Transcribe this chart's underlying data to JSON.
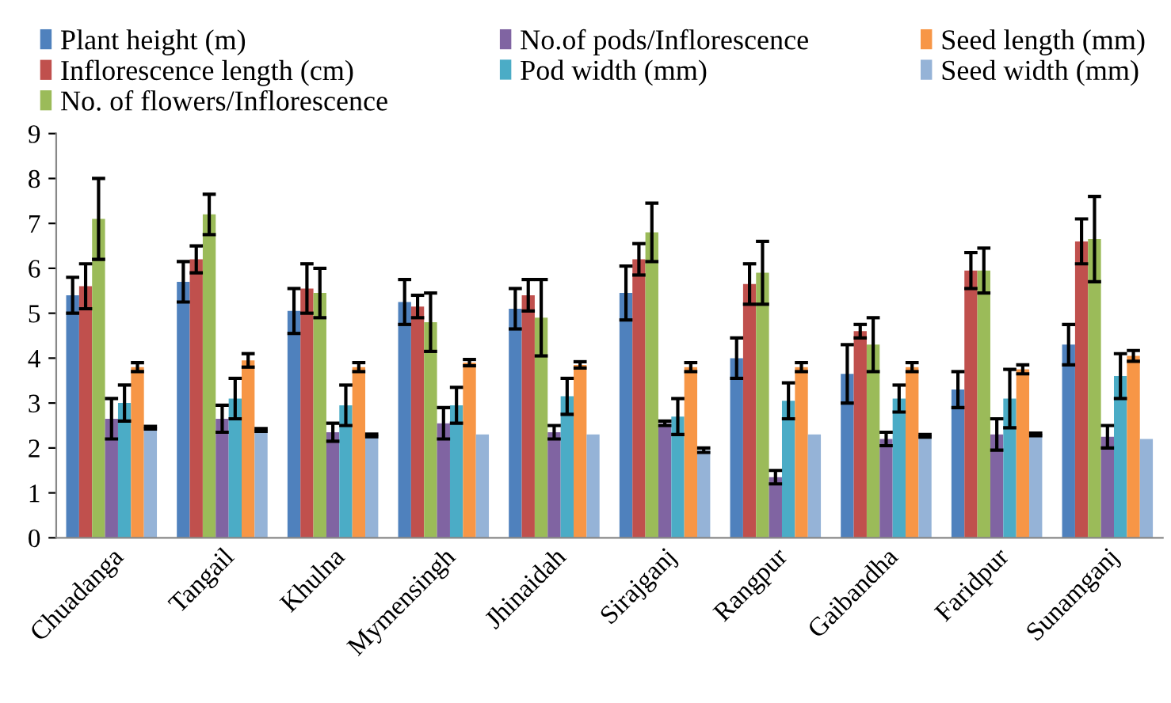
{
  "chart_data": {
    "type": "bar",
    "categories": [
      "Chuadanga",
      "Tangail",
      "Khulna",
      "Mymensingh",
      "Jhinaidah",
      "Sirajganj",
      "Rangpur",
      "Gaibandha",
      "Faridpur",
      "Sunamganj"
    ],
    "series": [
      {
        "name": "Plant height (m)",
        "color": "#4f81bd",
        "values": [
          5.4,
          5.7,
          5.05,
          5.25,
          5.1,
          5.45,
          4.0,
          3.65,
          3.3,
          4.3
        ],
        "errors": [
          0.4,
          0.45,
          0.5,
          0.5,
          0.45,
          0.6,
          0.45,
          0.65,
          0.4,
          0.45
        ]
      },
      {
        "name": "Inflorescence length (cm)",
        "color": "#c0504d",
        "values": [
          5.6,
          6.2,
          5.55,
          5.15,
          5.4,
          6.2,
          5.65,
          4.6,
          5.95,
          6.6
        ],
        "errors": [
          0.5,
          0.3,
          0.55,
          0.25,
          0.35,
          0.35,
          0.45,
          0.15,
          0.4,
          0.5
        ]
      },
      {
        "name": "No. of flowers/Inflorescence",
        "color": "#9bbb59",
        "values": [
          7.1,
          7.2,
          5.45,
          4.8,
          4.9,
          6.8,
          5.9,
          4.3,
          5.95,
          6.65
        ],
        "errors": [
          0.9,
          0.45,
          0.55,
          0.65,
          0.85,
          0.65,
          0.7,
          0.6,
          0.5,
          0.95
        ]
      },
      {
        "name": "No.of pods/Inflorescence",
        "color": "#8064a2",
        "values": [
          2.65,
          2.65,
          2.35,
          2.55,
          2.35,
          2.55,
          1.35,
          2.2,
          2.3,
          2.25
        ],
        "errors": [
          0.45,
          0.3,
          0.2,
          0.35,
          0.15,
          0.05,
          0.15,
          0.15,
          0.35,
          0.25
        ]
      },
      {
        "name": "Pod width (mm)",
        "color": "#4bacc6",
        "values": [
          3.0,
          3.1,
          2.95,
          2.95,
          3.15,
          2.7,
          3.05,
          3.1,
          3.1,
          3.6
        ],
        "errors": [
          0.4,
          0.45,
          0.45,
          0.4,
          0.4,
          0.4,
          0.4,
          0.3,
          0.65,
          0.5
        ]
      },
      {
        "name": "Seed length (mm)",
        "color": "#f79646",
        "values": [
          3.8,
          3.95,
          3.8,
          3.9,
          3.85,
          3.8,
          3.8,
          3.8,
          3.75,
          4.05
        ],
        "errors": [
          0.1,
          0.15,
          0.1,
          0.07,
          0.07,
          0.1,
          0.1,
          0.1,
          0.1,
          0.12
        ]
      },
      {
        "name": "Seed width (mm)",
        "color": "#95b3d7",
        "values": [
          2.45,
          2.4,
          2.28,
          2.3,
          2.3,
          1.95,
          2.3,
          2.27,
          2.3,
          2.2
        ],
        "errors": [
          0.03,
          0.03,
          0.03,
          null,
          null,
          0.05,
          null,
          0.03,
          0.03,
          null
        ]
      }
    ],
    "ylim": [
      0,
      9
    ],
    "yticks": [
      0,
      1,
      2,
      3,
      4,
      5,
      6,
      7,
      8,
      9
    ],
    "grid": false,
    "legend": "top"
  }
}
